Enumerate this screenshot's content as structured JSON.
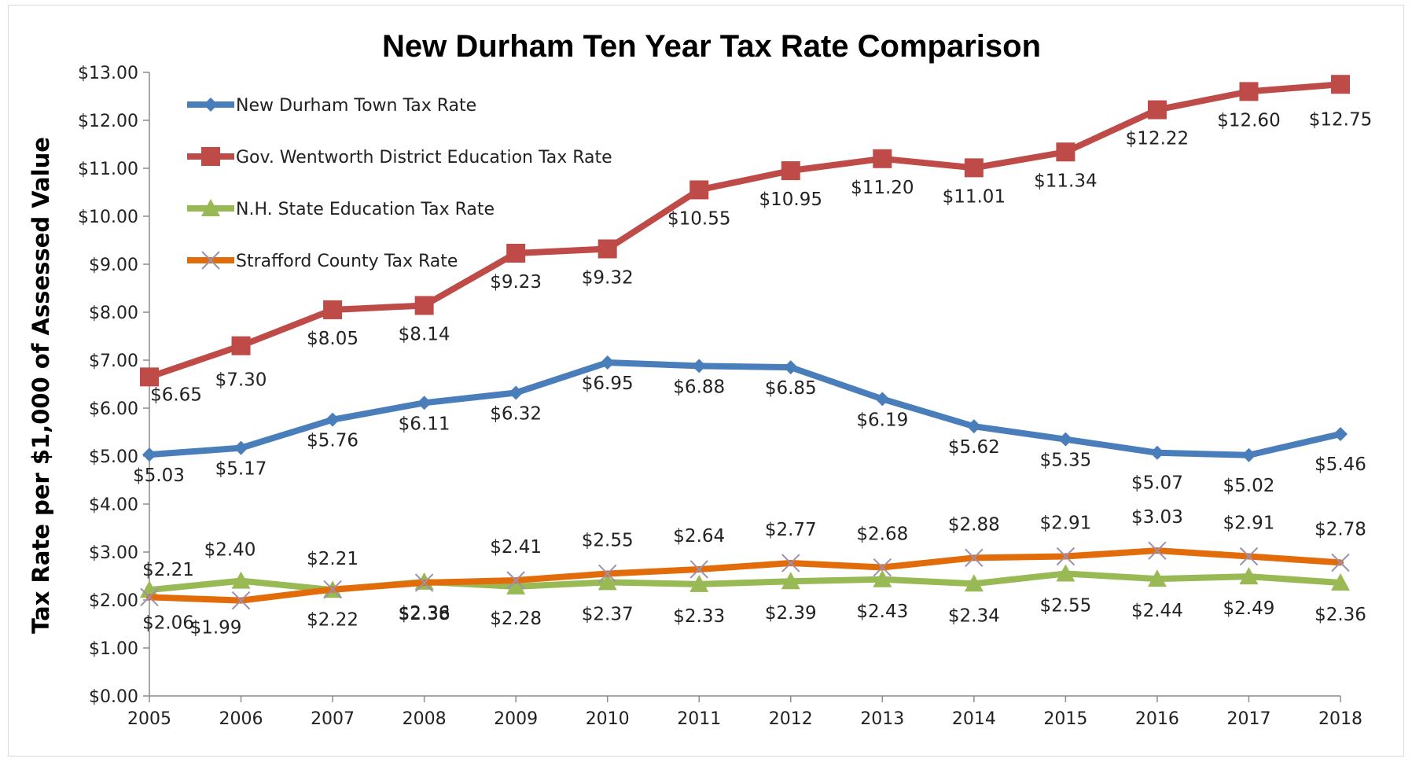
{
  "chart_data": {
    "type": "line",
    "title": "New Durham Ten Year Tax Rate Comparison",
    "xlabel": "",
    "ylabel": "Tax Rate per $1,000 of Assessed Value",
    "x": [
      "2005",
      "2006",
      "2007",
      "2008",
      "2009",
      "2010",
      "2011",
      "2012",
      "2013",
      "2014",
      "2015",
      "2016",
      "2017",
      "2018"
    ],
    "ylim": [
      0,
      13
    ],
    "ytick_step": 1,
    "ytick_labels": [
      "$0.00",
      "$1.00",
      "$2.00",
      "$3.00",
      "$4.00",
      "$5.00",
      "$6.00",
      "$7.00",
      "$8.00",
      "$9.00",
      "$10.00",
      "$11.00",
      "$12.00",
      "$13.00"
    ],
    "legend_position": "top-left",
    "grid": false,
    "series": [
      {
        "name": "New Durham Town Tax Rate",
        "color": "#4a7ebb",
        "marker": "diamond",
        "values": [
          5.03,
          5.17,
          5.76,
          6.11,
          6.32,
          6.95,
          6.88,
          6.85,
          6.19,
          5.62,
          5.35,
          5.07,
          5.02,
          5.46
        ],
        "labels": [
          "$5.03",
          "$5.17",
          "$5.76",
          "$6.11",
          "$6.32",
          "$6.95",
          "$6.88",
          "$6.85",
          "$6.19",
          "$5.62",
          "$5.35",
          "$5.07",
          "$5.02",
          "$5.46"
        ]
      },
      {
        "name": "Gov. Wentworth District Education Tax Rate",
        "color": "#be4b48",
        "marker": "square",
        "values": [
          6.65,
          7.3,
          8.05,
          8.14,
          9.23,
          9.32,
          10.55,
          10.95,
          11.2,
          11.01,
          11.34,
          12.22,
          12.6,
          12.75
        ],
        "labels": [
          "$6.65",
          "$7.30",
          "$8.05",
          "$8.14",
          "$9.23",
          "$9.32",
          "$10.55",
          "$10.95",
          "$11.20",
          "$11.01",
          "$11.34",
          "$12.22",
          "$12.60",
          "$12.75"
        ]
      },
      {
        "name": "N.H. State Education Tax Rate",
        "color": "#98b954",
        "marker": "triangle",
        "values": [
          2.21,
          2.4,
          2.21,
          2.38,
          2.28,
          2.37,
          2.33,
          2.39,
          2.43,
          2.34,
          2.55,
          2.44,
          2.49,
          2.36
        ],
        "labels": [
          "$2.21",
          "$2.40",
          "$2.21",
          "$2.38",
          "$2.28",
          "$2.37",
          "$2.33",
          "$2.39",
          "$2.43",
          "$2.34",
          "$2.55",
          "$2.44",
          "$2.49",
          "$2.36"
        ]
      },
      {
        "name": "Strafford County Tax Rate",
        "color": "#e36c0a",
        "marker": "x",
        "values": [
          2.06,
          1.99,
          2.22,
          2.36,
          2.41,
          2.55,
          2.64,
          2.77,
          2.68,
          2.88,
          2.91,
          3.03,
          2.91,
          2.78
        ],
        "labels": [
          "$2.06",
          "$1.99",
          "$2.22",
          "$2.36",
          "$2.41",
          "$2.55",
          "$2.64",
          "$2.77",
          "$2.68",
          "$2.88",
          "$2.91",
          "$3.03",
          "$2.91",
          "$2.78"
        ]
      }
    ]
  }
}
